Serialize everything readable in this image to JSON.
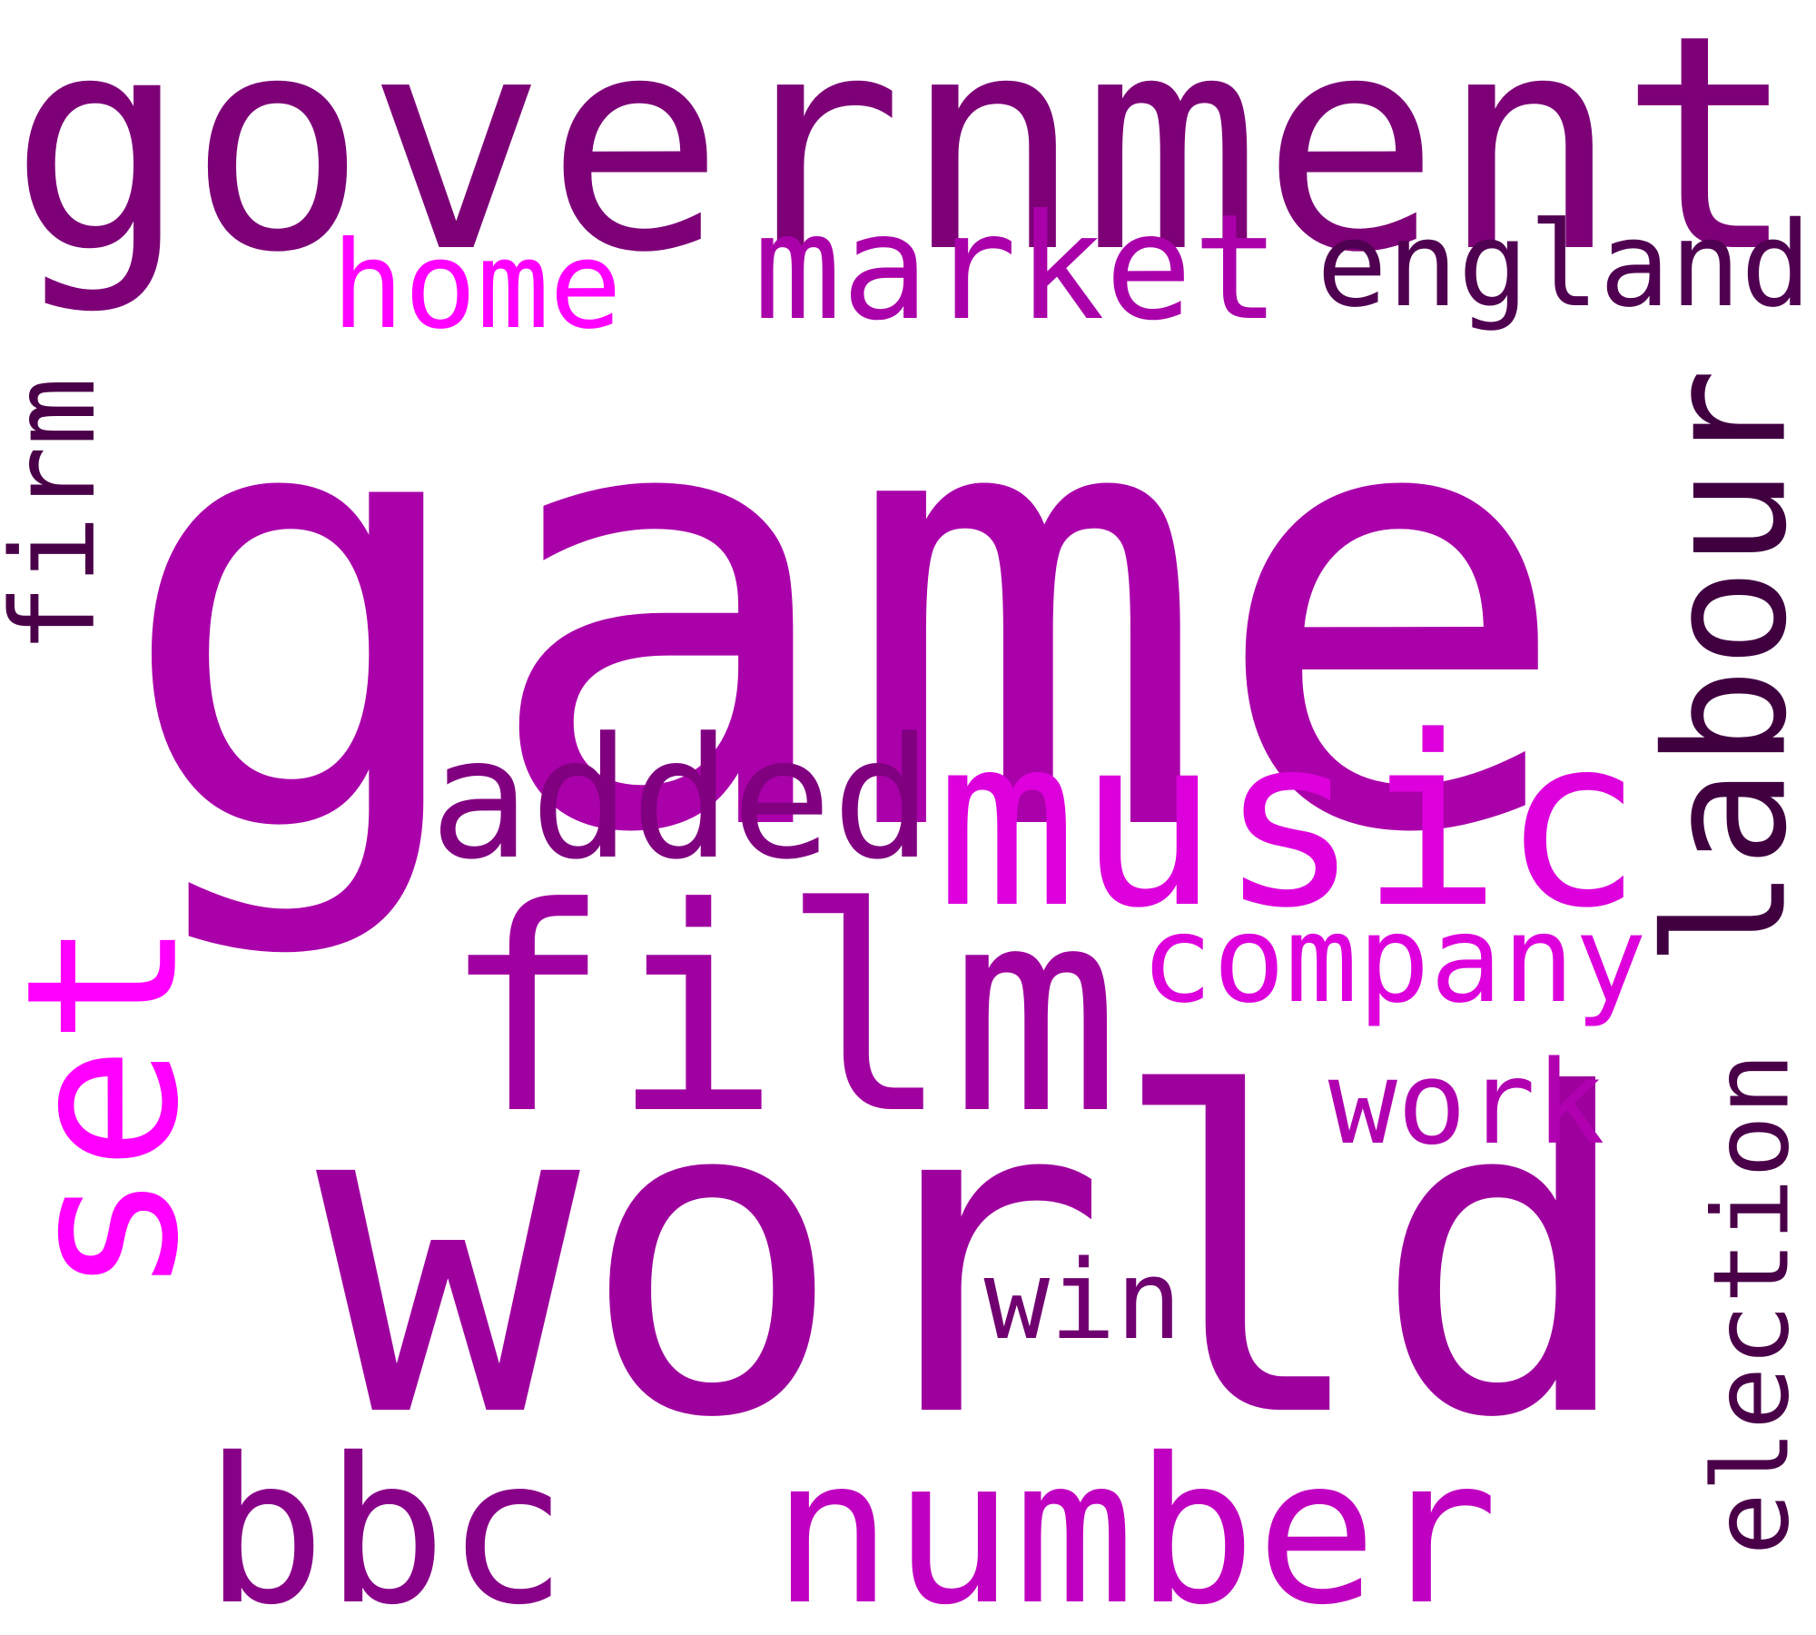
{
  "words": [
    {
      "id": "game",
      "text": "game",
      "color": "#aa00aa",
      "orientation": "horizontal"
    },
    {
      "id": "world",
      "text": "world",
      "color": "#9e009e",
      "orientation": "horizontal"
    },
    {
      "id": "government",
      "text": "government",
      "color": "#7d0077",
      "orientation": "horizontal"
    },
    {
      "id": "film",
      "text": "film",
      "color": "#a000a0",
      "orientation": "horizontal"
    },
    {
      "id": "music",
      "text": "music",
      "color": "#dd00dd",
      "orientation": "horizontal"
    },
    {
      "id": "number",
      "text": "number",
      "color": "#c000c0",
      "orientation": "horizontal"
    },
    {
      "id": "bbc",
      "text": "bbc",
      "color": "#880088",
      "orientation": "horizontal"
    },
    {
      "id": "labour",
      "text": "labour",
      "color": "#400040",
      "orientation": "vertical"
    },
    {
      "id": "set",
      "text": "set",
      "color": "#ff00ff",
      "orientation": "vertical"
    },
    {
      "id": "added",
      "text": "added",
      "color": "#800080",
      "orientation": "horizontal"
    },
    {
      "id": "market",
      "text": "market",
      "color": "#aa00aa",
      "orientation": "horizontal"
    },
    {
      "id": "england",
      "text": "england",
      "color": "#500050",
      "orientation": "horizontal"
    },
    {
      "id": "election",
      "text": "election",
      "color": "#4a0048",
      "orientation": "vertical"
    },
    {
      "id": "company",
      "text": "company",
      "color": "#dd00dd",
      "orientation": "horizontal"
    },
    {
      "id": "home",
      "text": "home",
      "color": "#ff00ff",
      "orientation": "horizontal"
    },
    {
      "id": "work",
      "text": "work",
      "color": "#b000b0",
      "orientation": "horizontal"
    },
    {
      "id": "firm",
      "text": "firm",
      "color": "#4a0048",
      "orientation": "vertical"
    },
    {
      "id": "win",
      "text": "win",
      "color": "#700070",
      "orientation": "horizontal"
    }
  ]
}
